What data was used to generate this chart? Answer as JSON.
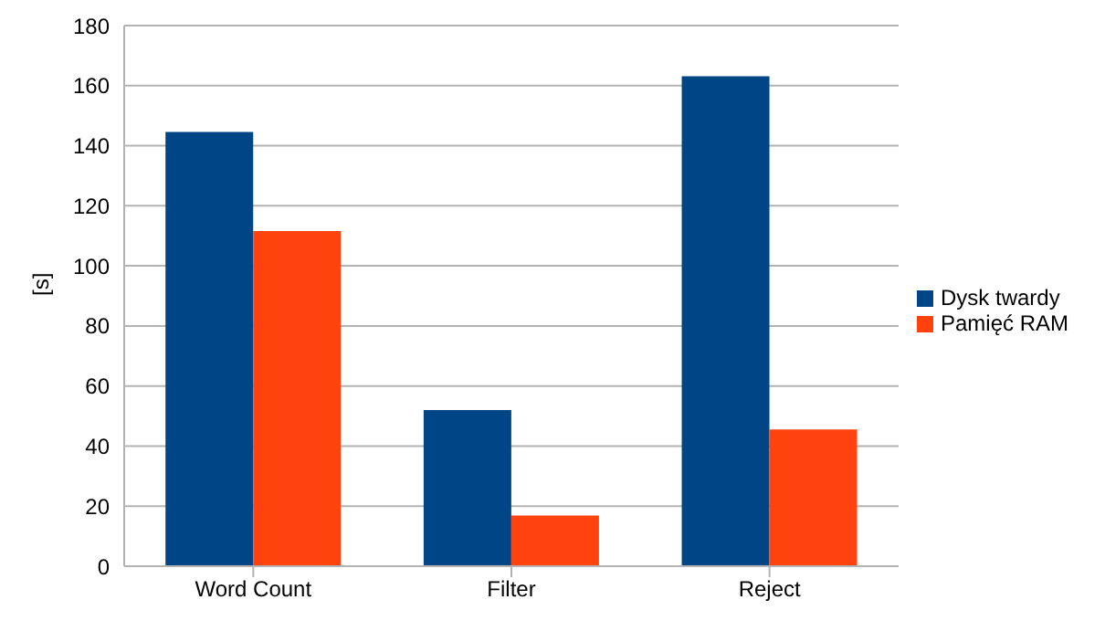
{
  "chart_data": {
    "type": "bar",
    "ylabel": "[s]",
    "categories": [
      "Word Count",
      "Filter",
      "Reject"
    ],
    "series": [
      {
        "name": "Dysk twardy",
        "color": "#004586",
        "values": [
          144.6,
          52,
          163.1
        ]
      },
      {
        "name": "Pamięć RAM",
        "color": "#ff420e",
        "values": [
          111.6,
          16.9,
          45.5
        ]
      }
    ],
    "ylim": [
      0,
      180
    ],
    "yticks": [
      0,
      20,
      40,
      60,
      80,
      100,
      120,
      140,
      160,
      180
    ],
    "grid": "y",
    "legend": "right"
  }
}
